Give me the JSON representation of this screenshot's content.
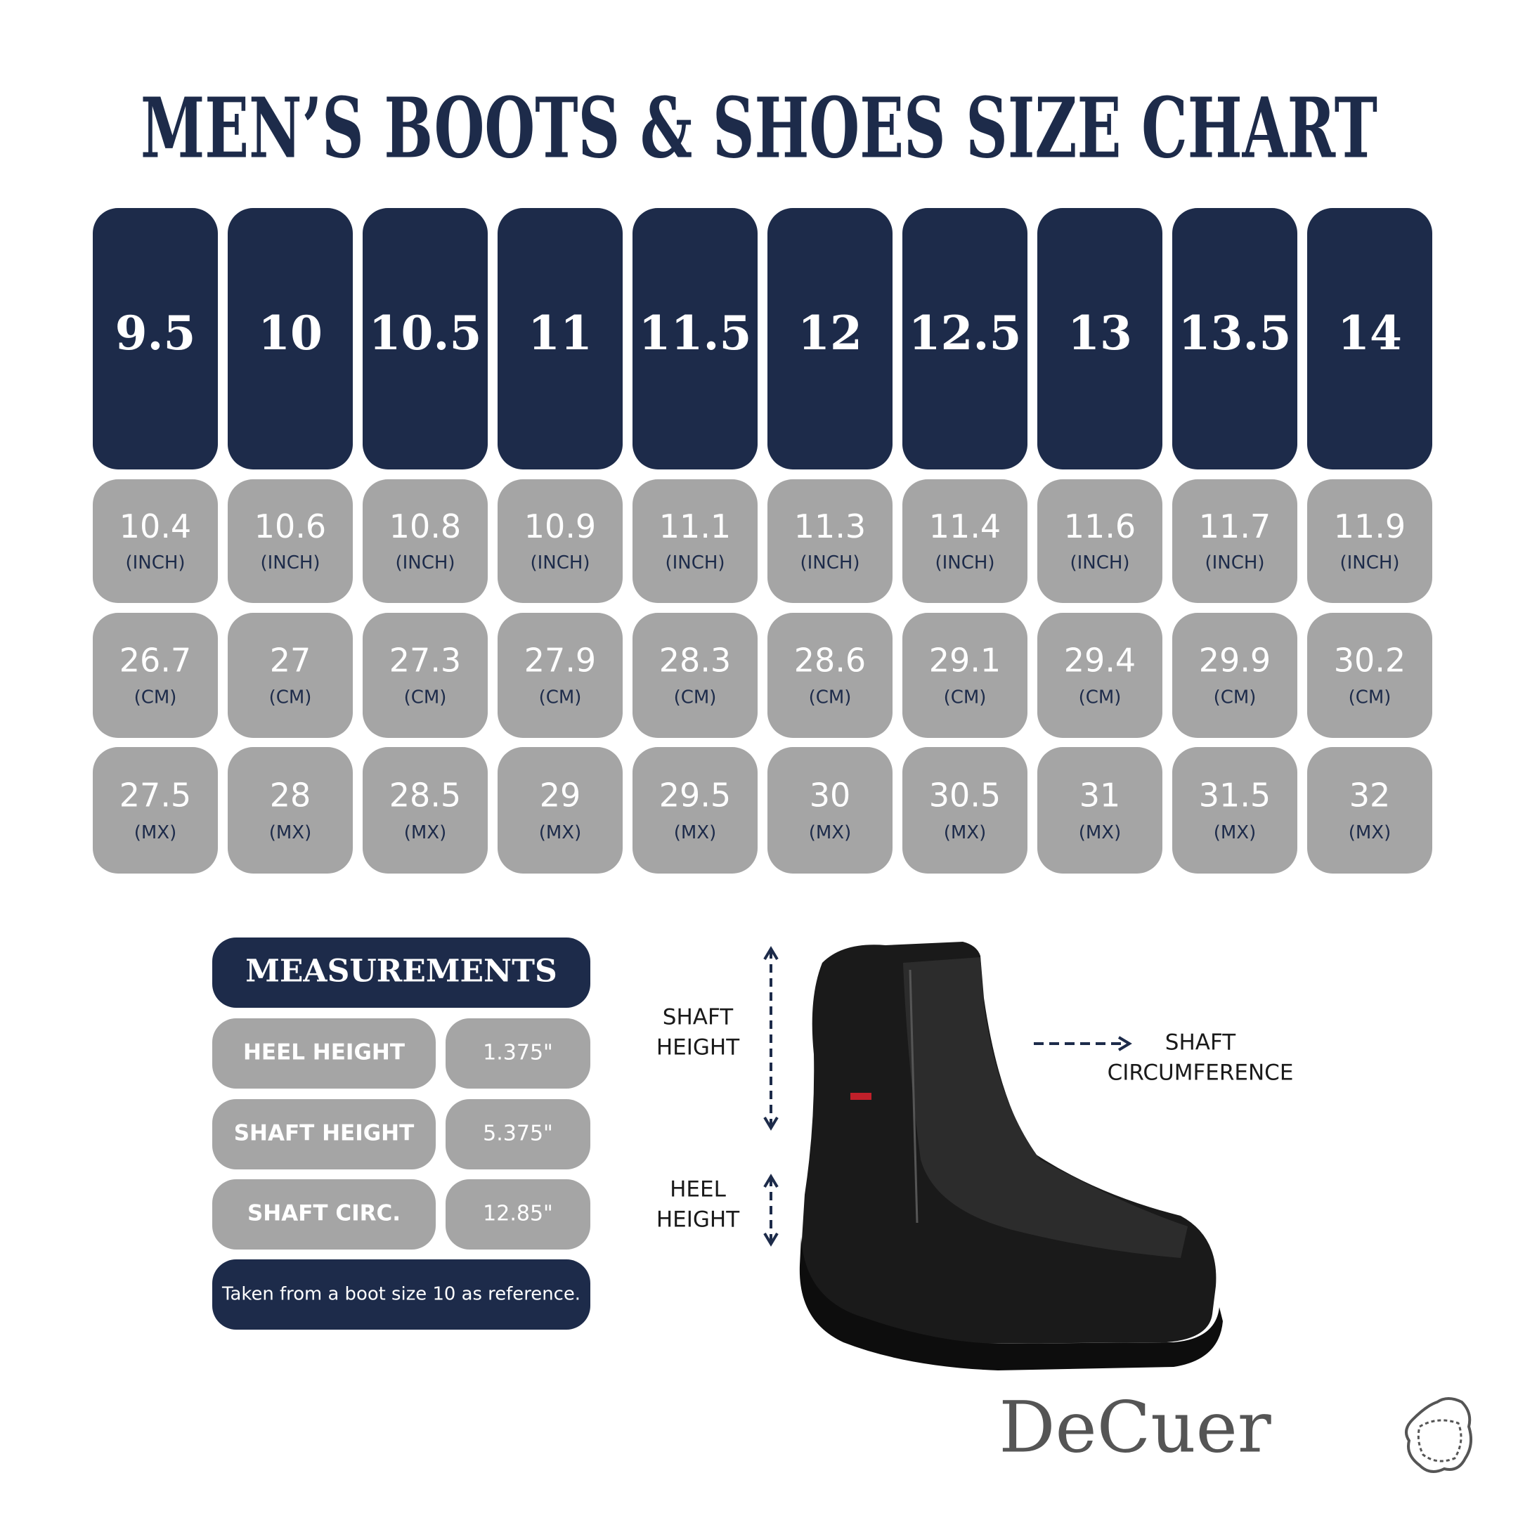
{
  "header": {
    "title": "MEN’S BOOTS & SHOES SIZE CHART"
  },
  "size_table": {
    "sizes": [
      "9.5",
      "10",
      "10.5",
      "11",
      "11.5",
      "12",
      "12.5",
      "13",
      "13.5",
      "14"
    ],
    "rows": [
      {
        "unit": "(INCH)",
        "values": [
          "10.4",
          "10.6",
          "10.8",
          "10.9",
          "11.1",
          "11.3",
          "11.4",
          "11.6",
          "11.7",
          "11.9"
        ]
      },
      {
        "unit": "(CM)",
        "values": [
          "26.7",
          "27",
          "27.3",
          "27.9",
          "28.3",
          "28.6",
          "29.1",
          "29.4",
          "29.9",
          "30.2"
        ]
      },
      {
        "unit": "(MX)",
        "values": [
          "27.5",
          "28",
          "28.5",
          "29",
          "29.5",
          "30",
          "30.5",
          "31",
          "31.5",
          "32"
        ]
      }
    ]
  },
  "measurements": {
    "title": "MEASUREMENTS",
    "rows": [
      [
        "HEEL HEIGHT",
        "1.375\""
      ],
      [
        "SHAFT HEIGHT",
        "5.375\""
      ],
      [
        "SHAFT CIRC.",
        "12.85\""
      ]
    ],
    "note": "Taken from a boot size 10 as reference."
  },
  "boot_labels": {
    "shaft_height": [
      "SHAFT",
      "HEIGHT"
    ],
    "heel_height": [
      "HEEL",
      "HEIGHT"
    ],
    "shaft_circumference": [
      "SHAFT",
      "CIRCUMFERENCE"
    ]
  },
  "logo": {
    "text": "DeCuer"
  }
}
